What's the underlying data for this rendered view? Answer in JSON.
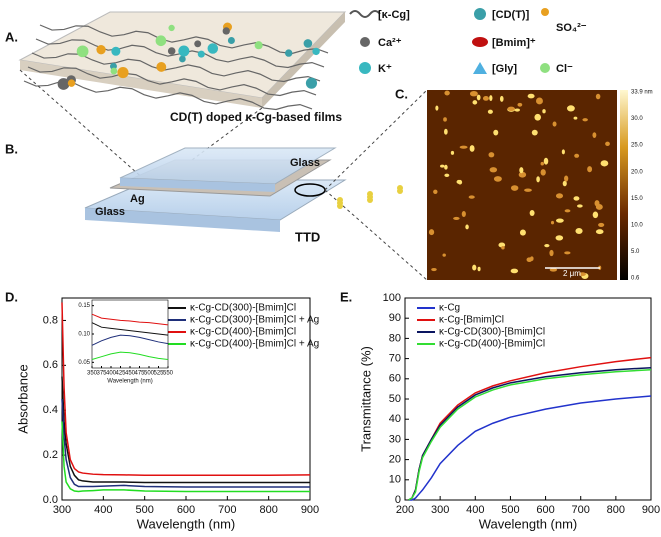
{
  "panels": {
    "A": {
      "label": "A.",
      "caption": "CD(T) doped κ-Cg-based films",
      "legend": [
        "[κ-Cg]",
        "[CD(T)]",
        "SO₄²⁻",
        "Ca²⁺",
        "[Bmim]⁺",
        "K⁺",
        "[Gly]",
        "Cl⁻"
      ]
    },
    "B": {
      "label": "B.",
      "glass_top": "Glass",
      "glass_bottom": "Glass",
      "ag": "Ag",
      "device": "TTD"
    },
    "C": {
      "label": "C.",
      "colorbar": [
        "33.9 nm",
        "30.0",
        "25.0",
        "20.0",
        "15.0",
        "10.0",
        "5.0",
        "0.6"
      ],
      "scale": "2 μm"
    },
    "D": {
      "label": "D."
    },
    "E": {
      "label": "E."
    }
  },
  "chart_data": [
    {
      "type": "line",
      "xlabel": "Wavelength (nm)",
      "ylabel": "Absorbance",
      "legend": "upper right",
      "x": [
        300,
        305,
        310,
        320,
        330,
        340,
        350,
        375,
        400,
        450,
        500,
        600,
        700,
        800,
        900
      ],
      "xlim": [
        300,
        900
      ],
      "xticks": [
        300,
        400,
        500,
        600,
        700,
        800,
        900
      ],
      "ylim": [
        0,
        0.9
      ],
      "yticks": [
        {
          "value": 0,
          "label": "0.0"
        },
        0.2,
        0.4,
        0.6,
        0.8
      ],
      "series": [
        {
          "name": "κ-Cg-CD(300)-[Bmim]Cl",
          "color": "#111111",
          "values": [
            0.55,
            0.35,
            0.25,
            0.15,
            0.11,
            0.09,
            0.085,
            0.08,
            0.08,
            0.08,
            0.078,
            0.078,
            0.078,
            0.078,
            0.078
          ]
        },
        {
          "name": "κ-Cg-CD(300)-[Bmim]Cl + Ag",
          "color": "#1f2f7a",
          "values": [
            0.45,
            0.28,
            0.18,
            0.1,
            0.07,
            0.06,
            0.06,
            0.06,
            0.062,
            0.065,
            0.06,
            0.058,
            0.058,
            0.058,
            0.058
          ]
        },
        {
          "name": "κ-Cg-CD(400)-[Bmim]Cl",
          "color": "#e01010",
          "values": [
            0.88,
            0.5,
            0.3,
            0.18,
            0.14,
            0.125,
            0.12,
            0.115,
            0.113,
            0.112,
            0.11,
            0.11,
            0.11,
            0.11,
            0.112
          ]
        },
        {
          "name": "κ-Cg-CD(400)-[Bmim]Cl + Ag",
          "color": "#22dd22",
          "values": [
            0.35,
            0.15,
            0.08,
            0.05,
            0.04,
            0.038,
            0.04,
            0.042,
            0.045,
            0.045,
            0.04,
            0.038,
            0.038,
            0.038,
            0.038
          ]
        }
      ]
    },
    {
      "type": "line",
      "xlabel": "Wavelength (nm)",
      "x": [
        350,
        375,
        400,
        425,
        450,
        475,
        500,
        525,
        550
      ],
      "xlim": [
        350,
        550
      ],
      "xticks": [
        350,
        375,
        400,
        425,
        450,
        475,
        500,
        525,
        550
      ],
      "ylim": [
        0.04,
        0.16
      ],
      "yticks": [
        0.05,
        {
          "value": 0.1,
          "label": "0.10"
        },
        0.15
      ],
      "series": [
        {
          "color": "#111111",
          "values": [
            0.12,
            0.112,
            0.11,
            0.108,
            0.106,
            0.104,
            0.102,
            0.1,
            0.098
          ]
        },
        {
          "color": "#1f2f7a",
          "values": [
            0.08,
            0.088,
            0.094,
            0.098,
            0.097,
            0.094,
            0.09,
            0.086,
            0.083
          ]
        },
        {
          "color": "#e01010",
          "values": [
            0.135,
            0.128,
            0.126,
            0.124,
            0.123,
            0.121,
            0.12,
            0.118,
            0.116
          ]
        },
        {
          "color": "#22dd22",
          "values": [
            0.055,
            0.06,
            0.065,
            0.068,
            0.067,
            0.064,
            0.06,
            0.057,
            0.055
          ]
        }
      ]
    },
    {
      "type": "line",
      "xlabel": "Wavelength (nm)",
      "ylabel": "Transmittance (%)",
      "legend": "upper left",
      "x": [
        210,
        220,
        230,
        240,
        250,
        275,
        300,
        350,
        400,
        450,
        500,
        600,
        700,
        800,
        900
      ],
      "xlim": [
        200,
        900
      ],
      "xticks": [
        200,
        300,
        400,
        500,
        600,
        700,
        800,
        900
      ],
      "ylim": [
        0,
        100
      ],
      "yticks": [
        0,
        10,
        20,
        30,
        40,
        50,
        60,
        70,
        80,
        90,
        100
      ],
      "series": [
        {
          "name": "κ-Cg",
          "color": "#2233cc",
          "values": [
            0,
            0,
            1,
            3,
            5,
            11,
            18,
            27,
            34,
            38,
            41,
            45,
            48,
            50,
            51.5
          ]
        },
        {
          "name": "κ-Cg-[Bmim]Cl",
          "color": "#e01010",
          "values": [
            0,
            1,
            5,
            15,
            22,
            30,
            38,
            47,
            53,
            56.5,
            59,
            63,
            66,
            68.5,
            70.5
          ]
        },
        {
          "name": "κ-Cg-CD(300)-[Bmim]Cl",
          "color": "#0a1560",
          "values": [
            0,
            1,
            5,
            15,
            22,
            30,
            37,
            46,
            52,
            55.5,
            58,
            61,
            63,
            64.5,
            65.5
          ]
        },
        {
          "name": "κ-Cg-CD(400)-[Bmim]Cl",
          "color": "#33dd33",
          "values": [
            0,
            1,
            4,
            14,
            21,
            29,
            36,
            45,
            51,
            54.5,
            57,
            60,
            62,
            63.5,
            64.5
          ]
        }
      ]
    }
  ]
}
